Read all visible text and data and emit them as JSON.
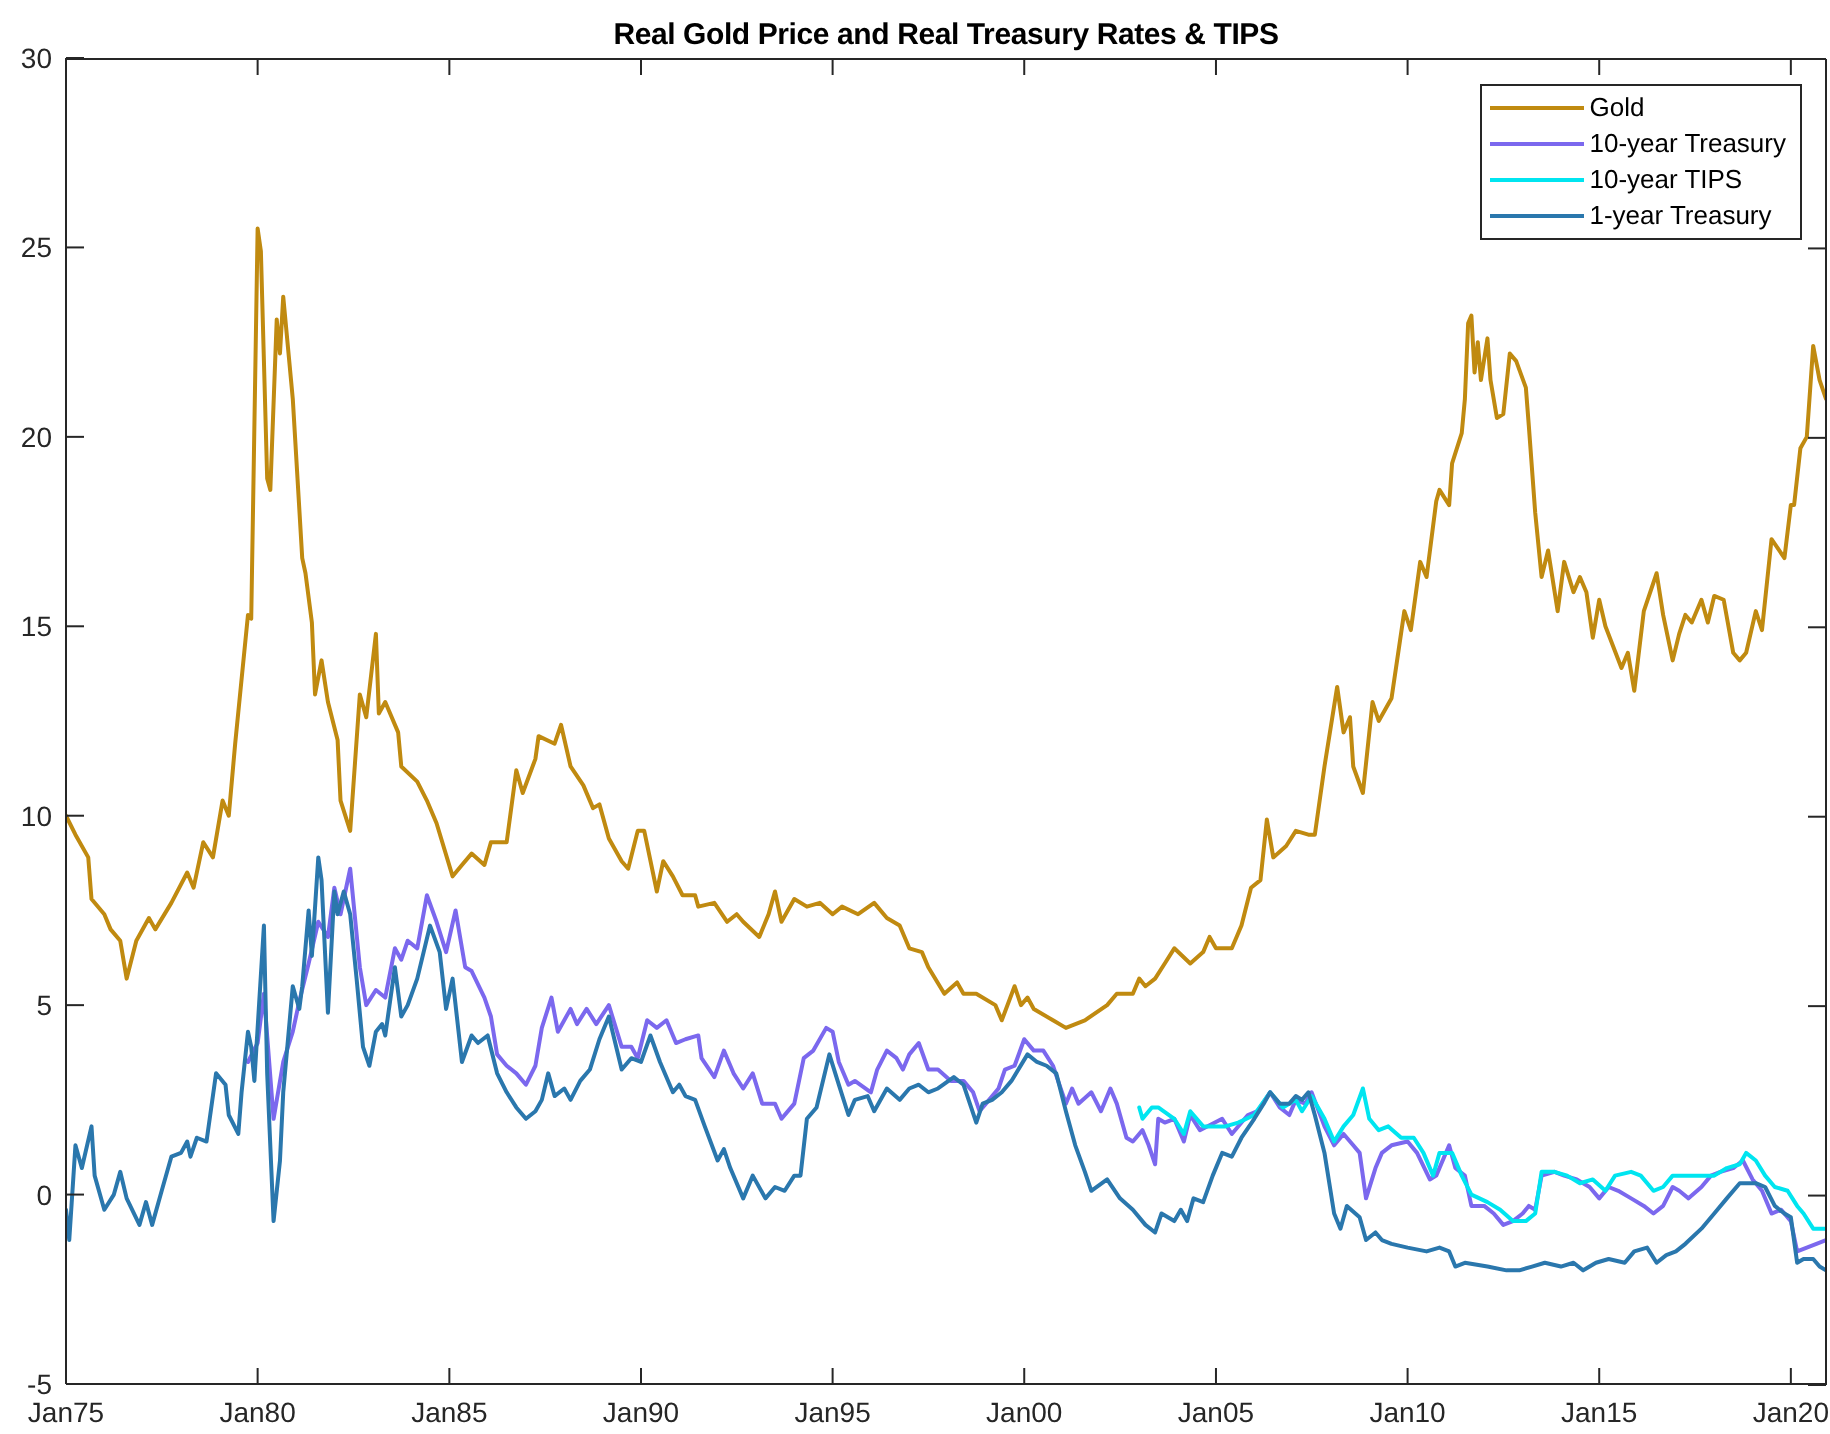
{
  "chart_data": {
    "type": "line",
    "title": "Real Gold Price and Real Treasury Rates & TIPS",
    "xlim": [
      "1975-01",
      "2020-12"
    ],
    "xticks": [
      {
        "value": "1975-01",
        "label": "Jan75"
      },
      {
        "value": "1980-01",
        "label": "Jan80"
      },
      {
        "value": "1985-01",
        "label": "Jan85"
      },
      {
        "value": "1990-01",
        "label": "Jan90"
      },
      {
        "value": "1995-01",
        "label": "Jan95"
      },
      {
        "value": "2000-01",
        "label": "Jan00"
      },
      {
        "value": "2005-01",
        "label": "Jan05"
      },
      {
        "value": "2010-01",
        "label": "Jan10"
      },
      {
        "value": "2015-01",
        "label": "Jan15"
      },
      {
        "value": "2020-01",
        "label": "Jan20"
      }
    ],
    "ylim": [
      -5,
      30
    ],
    "yticks": [
      -5,
      0,
      5,
      10,
      15,
      20,
      25,
      30
    ],
    "legend": "top right",
    "series": [
      {
        "name": "Gold",
        "color": "#c08a10",
        "x": [
          "1975-01",
          "1975-04",
          "1975-08",
          "1975-09",
          "1976-01",
          "1976-03",
          "1976-06",
          "1976-08",
          "1976-11",
          "1977-03",
          "1977-05",
          "1977-10",
          "1978-03",
          "1978-05",
          "1978-08",
          "1978-11",
          "1979-02",
          "1979-04",
          "1979-06",
          "1979-10",
          "1979-11",
          "1980-01",
          "1980-02",
          "1980-04",
          "1980-05",
          "1980-07",
          "1980-08",
          "1980-09",
          "1980-12",
          "1981-03",
          "1981-04",
          "1981-06",
          "1981-07",
          "1981-09",
          "1981-11",
          "1982-02",
          "1982-03",
          "1982-06",
          "1982-09",
          "1982-11",
          "1983-02",
          "1983-03",
          "1983-05",
          "1983-09",
          "1983-10",
          "1984-03",
          "1984-06",
          "1984-09",
          "1985-02",
          "1985-05",
          "1985-08",
          "1985-12",
          "1986-02",
          "1986-07",
          "1986-10",
          "1986-12",
          "1987-04",
          "1987-05",
          "1987-10",
          "1987-12",
          "1988-03",
          "1988-07",
          "1988-10",
          "1988-12",
          "1989-03",
          "1989-07",
          "1989-09",
          "1989-12",
          "1990-02",
          "1990-06",
          "1990-08",
          "1990-11",
          "1991-02",
          "1991-06",
          "1991-07",
          "1991-12",
          "1992-04",
          "1992-07",
          "1992-09",
          "1993-02",
          "1993-05",
          "1993-07",
          "1993-09",
          "1994-01",
          "1994-05",
          "1994-09",
          "1995-01",
          "1995-04",
          "1995-09",
          "1996-02",
          "1996-06",
          "1996-10",
          "1997-01",
          "1997-05",
          "1997-07",
          "1997-12",
          "1998-04",
          "1998-06",
          "1998-10",
          "1999-04",
          "1999-06",
          "1999-10",
          "1999-12",
          "2000-02",
          "2000-04",
          "2000-10",
          "2001-02",
          "2001-08",
          "2002-03",
          "2002-06",
          "2002-11",
          "2003-01",
          "2003-03",
          "2003-06",
          "2003-09",
          "2003-12",
          "2004-05",
          "2004-09",
          "2004-11",
          "2005-01",
          "2005-06",
          "2005-09",
          "2005-12",
          "2006-03",
          "2006-05",
          "2006-07",
          "2006-11",
          "2007-02",
          "2007-06",
          "2007-08",
          "2007-11",
          "2008-03",
          "2008-05",
          "2008-07",
          "2008-08",
          "2008-11",
          "2009-02",
          "2009-04",
          "2009-08",
          "2009-12",
          "2010-02",
          "2010-05",
          "2010-07",
          "2010-10",
          "2010-11",
          "2011-02",
          "2011-03",
          "2011-06",
          "2011-07",
          "2011-08",
          "2011-09",
          "2011-10",
          "2011-11",
          "2011-12",
          "2012-02",
          "2012-03",
          "2012-05",
          "2012-07",
          "2012-09",
          "2012-11",
          "2013-02",
          "2013-03",
          "2013-05",
          "2013-07",
          "2013-09",
          "2013-12",
          "2014-02",
          "2014-05",
          "2014-07",
          "2014-09",
          "2014-11",
          "2015-01",
          "2015-03",
          "2015-08",
          "2015-10",
          "2015-12",
          "2016-03",
          "2016-07",
          "2016-09",
          "2016-12",
          "2017-02",
          "2017-04",
          "2017-06",
          "2017-09",
          "2017-11",
          "2018-01",
          "2018-04",
          "2018-07",
          "2018-09",
          "2018-11",
          "2019-02",
          "2019-04",
          "2019-07",
          "2019-11",
          "2020-01",
          "2020-02",
          "2020-04",
          "2020-06",
          "2020-08",
          "2020-10",
          "2020-12"
        ],
        "values": [
          10.0,
          9.5,
          8.9,
          7.8,
          7.4,
          7.0,
          6.7,
          5.7,
          6.7,
          7.3,
          7.0,
          7.7,
          8.5,
          8.1,
          9.3,
          8.9,
          10.4,
          10.0,
          11.9,
          15.3,
          15.2,
          25.5,
          24.9,
          18.9,
          18.6,
          23.1,
          22.2,
          23.7,
          21.0,
          16.8,
          16.4,
          15.1,
          13.2,
          14.1,
          13.0,
          12.0,
          10.4,
          9.6,
          13.2,
          12.6,
          14.8,
          12.7,
          13.0,
          12.2,
          11.3,
          10.9,
          10.4,
          9.8,
          8.4,
          8.7,
          9.0,
          8.7,
          9.3,
          9.3,
          11.2,
          10.6,
          11.5,
          12.1,
          11.9,
          12.4,
          11.3,
          10.8,
          10.2,
          10.3,
          9.4,
          8.8,
          8.6,
          9.6,
          9.6,
          8.0,
          8.8,
          8.4,
          7.9,
          7.9,
          7.6,
          7.7,
          7.2,
          7.4,
          7.2,
          6.8,
          7.4,
          8.0,
          7.2,
          7.8,
          7.6,
          7.7,
          7.4,
          7.6,
          7.4,
          7.7,
          7.3,
          7.1,
          6.5,
          6.4,
          6.0,
          5.3,
          5.6,
          5.3,
          5.3,
          5.0,
          4.6,
          5.5,
          5.0,
          5.2,
          4.9,
          4.6,
          4.4,
          4.6,
          5.0,
          5.3,
          5.3,
          5.7,
          5.5,
          5.7,
          6.1,
          6.5,
          6.1,
          6.4,
          6.8,
          6.5,
          6.5,
          7.1,
          8.1,
          8.3,
          9.9,
          8.9,
          9.2,
          9.6,
          9.5,
          9.5,
          11.3,
          13.4,
          12.2,
          12.6,
          11.3,
          10.6,
          13.0,
          12.5,
          13.1,
          15.4,
          14.9,
          16.7,
          16.3,
          18.3,
          18.6,
          18.2,
          19.3,
          20.1,
          21.0,
          23.0,
          23.2,
          21.7,
          22.5,
          21.5,
          22.6,
          21.5,
          20.5,
          20.6,
          22.2,
          22.0,
          21.3,
          20.3,
          18.0,
          16.3,
          17.0,
          15.4,
          16.7,
          15.9,
          16.3,
          15.9,
          14.7,
          15.7,
          15.0,
          13.9,
          14.3,
          13.3,
          15.4,
          16.4,
          15.3,
          14.1,
          14.8,
          15.3,
          15.1,
          15.7,
          15.1,
          15.8,
          15.7,
          14.3,
          14.1,
          14.3,
          15.4,
          14.9,
          17.3,
          16.8,
          18.2,
          18.2,
          19.7,
          20.0,
          22.4,
          21.5,
          21.0
        ]
      },
      {
        "name": "10-year Treasury",
        "color": "#7b68ee",
        "x": [
          "1979-10",
          "1980-01",
          "1980-03",
          "1980-06",
          "1980-09",
          "1980-12",
          "1981-02",
          "1981-05",
          "1981-08",
          "1981-11",
          "1982-01",
          "1982-03",
          "1982-06",
          "1982-09",
          "1982-11",
          "1983-02",
          "1983-05",
          "1983-08",
          "1983-10",
          "1983-12",
          "1984-03",
          "1984-06",
          "1984-09",
          "1984-12",
          "1985-03",
          "1985-06",
          "1985-08",
          "1985-12",
          "1986-02",
          "1986-04",
          "1986-07",
          "1986-10",
          "1987-01",
          "1987-04",
          "1987-06",
          "1987-09",
          "1987-11",
          "1988-03",
          "1988-05",
          "1988-08",
          "1988-11",
          "1989-03",
          "1989-07",
          "1989-10",
          "1989-12",
          "1990-03",
          "1990-06",
          "1990-09",
          "1990-12",
          "1991-03",
          "1991-07",
          "1991-08",
          "1991-12",
          "1992-03",
          "1992-06",
          "1992-09",
          "1992-12",
          "1993-03",
          "1993-07",
          "1993-09",
          "1994-01",
          "1994-04",
          "1994-07",
          "1994-11",
          "1995-01",
          "1995-03",
          "1995-06",
          "1995-08",
          "1996-01",
          "1996-03",
          "1996-06",
          "1996-09",
          "1996-11",
          "1997-01",
          "1997-04",
          "1997-07",
          "1997-10",
          "1998-02",
          "1998-06",
          "1998-09",
          "1998-11",
          "1999-01",
          "1999-05",
          "1999-07",
          "1999-10",
          "2000-01",
          "2000-04",
          "2000-07",
          "2000-10",
          "2000-12",
          "2001-02",
          "2001-04",
          "2001-06",
          "2001-10",
          "2002-01",
          "2002-04",
          "2002-06",
          "2002-09",
          "2002-11",
          "2003-02",
          "2003-04",
          "2003-06",
          "2003-07",
          "2003-09",
          "2003-12",
          "2004-03",
          "2004-05",
          "2004-08",
          "2005-03",
          "2005-06",
          "2005-11",
          "2006-02",
          "2006-06",
          "2006-09",
          "2006-12",
          "2007-02",
          "2007-05",
          "2007-07",
          "2007-11",
          "2008-02",
          "2008-05",
          "2008-08",
          "2008-10",
          "2008-12",
          "2009-03",
          "2009-05",
          "2009-08",
          "2010-01",
          "2010-04",
          "2010-08",
          "2010-10",
          "2011-02",
          "2011-04",
          "2011-07",
          "2011-09",
          "2012-01",
          "2012-04",
          "2012-07",
          "2012-10",
          "2013-01",
          "2013-03",
          "2013-05",
          "2013-07",
          "2013-11",
          "2014-02",
          "2014-06",
          "2014-10",
          "2015-01",
          "2015-04",
          "2015-07",
          "2015-11",
          "2016-03",
          "2016-06",
          "2016-09",
          "2016-12",
          "2017-02",
          "2017-05",
          "2017-09",
          "2017-12",
          "2018-03",
          "2018-07",
          "2018-10",
          "2019-01",
          "2019-04",
          "2019-07",
          "2019-10",
          "2020-01",
          "2020-03",
          "2020-06",
          "2020-09",
          "2020-12"
        ],
        "values": [
          3.5,
          4.0,
          5.3,
          2.0,
          3.5,
          4.3,
          5.1,
          6.1,
          7.2,
          6.8,
          8.1,
          7.4,
          8.6,
          6.0,
          5.0,
          5.4,
          5.2,
          6.5,
          6.2,
          6.7,
          6.5,
          7.9,
          7.2,
          6.4,
          7.5,
          6.0,
          5.9,
          5.2,
          4.7,
          3.7,
          3.4,
          3.2,
          2.9,
          3.4,
          4.4,
          5.2,
          4.3,
          4.9,
          4.5,
          4.9,
          4.5,
          5.0,
          3.9,
          3.9,
          3.6,
          4.6,
          4.4,
          4.6,
          4.0,
          4.1,
          4.2,
          3.6,
          3.1,
          3.8,
          3.2,
          2.8,
          3.2,
          2.4,
          2.4,
          2.0,
          2.4,
          3.6,
          3.8,
          4.4,
          4.3,
          3.5,
          2.9,
          3.0,
          2.7,
          3.3,
          3.8,
          3.6,
          3.3,
          3.7,
          4.0,
          3.3,
          3.3,
          3.0,
          3.0,
          2.7,
          2.2,
          2.4,
          2.8,
          3.3,
          3.4,
          4.1,
          3.8,
          3.8,
          3.4,
          2.9,
          2.4,
          2.8,
          2.4,
          2.7,
          2.2,
          2.8,
          2.4,
          1.5,
          1.4,
          1.7,
          1.3,
          0.8,
          2.0,
          1.9,
          2.0,
          1.4,
          2.1,
          1.7,
          2.0,
          1.6,
          2.1,
          2.2,
          2.7,
          2.3,
          2.1,
          2.5,
          2.4,
          2.7,
          1.8,
          1.3,
          1.6,
          1.3,
          1.1,
          -0.1,
          0.7,
          1.1,
          1.3,
          1.4,
          1.1,
          0.4,
          0.5,
          1.3,
          0.7,
          0.5,
          -0.3,
          -0.3,
          -0.5,
          -0.8,
          -0.7,
          -0.5,
          -0.3,
          -0.4,
          0.5,
          0.6,
          0.5,
          0.4,
          0.2,
          -0.1,
          0.2,
          0.1,
          -0.1,
          -0.3,
          -0.5,
          -0.3,
          0.2,
          0.1,
          -0.1,
          0.2,
          0.5,
          0.6,
          0.7,
          0.9,
          0.4,
          0.1,
          -0.5,
          -0.4,
          -0.7,
          -1.5,
          -1.4,
          -1.3,
          -1.2
        ]
      },
      {
        "name": "10-year TIPS",
        "color": "#00e5f0",
        "x": [
          "2003-01",
          "2003-02",
          "2003-05",
          "2003-07",
          "2003-12",
          "2004-03",
          "2004-05",
          "2004-09",
          "2005-04",
          "2005-08",
          "2006-01",
          "2006-06",
          "2006-10",
          "2007-02",
          "2007-04",
          "2007-07",
          "2007-11",
          "2008-02",
          "2008-05",
          "2008-08",
          "2008-11",
          "2009-01",
          "2009-04",
          "2009-07",
          "2009-11",
          "2010-03",
          "2010-06",
          "2010-09",
          "2010-11",
          "2011-03",
          "2011-06",
          "2011-09",
          "2012-02",
          "2012-06",
          "2012-10",
          "2013-02",
          "2013-05",
          "2013-07",
          "2013-11",
          "2014-03",
          "2014-07",
          "2014-11",
          "2015-03",
          "2015-06",
          "2015-11",
          "2016-02",
          "2016-06",
          "2016-09",
          "2016-12",
          "2017-04",
          "2017-09",
          "2018-01",
          "2018-05",
          "2018-09",
          "2018-11",
          "2019-02",
          "2019-05",
          "2019-08",
          "2019-12",
          "2020-03",
          "2020-05",
          "2020-08",
          "2020-10",
          "2020-12"
        ],
        "values": [
          2.3,
          2.0,
          2.3,
          2.3,
          2.0,
          1.6,
          2.2,
          1.8,
          1.8,
          1.9,
          2.1,
          2.7,
          2.3,
          2.5,
          2.2,
          2.6,
          2.0,
          1.4,
          1.8,
          2.1,
          2.8,
          2.0,
          1.7,
          1.8,
          1.5,
          1.5,
          1.1,
          0.5,
          1.1,
          1.1,
          0.5,
          0.0,
          -0.2,
          -0.4,
          -0.7,
          -0.7,
          -0.5,
          0.6,
          0.6,
          0.5,
          0.3,
          0.4,
          0.1,
          0.5,
          0.6,
          0.5,
          0.1,
          0.2,
          0.5,
          0.5,
          0.5,
          0.5,
          0.7,
          0.8,
          1.1,
          0.9,
          0.5,
          0.2,
          0.1,
          -0.3,
          -0.5,
          -0.9,
          -0.9,
          -0.9
        ]
      },
      {
        "name": "1-year Treasury",
        "color": "#2a77ad",
        "x": [
          "1975-01",
          "1975-02",
          "1975-04",
          "1975-06",
          "1975-09",
          "1975-10",
          "1976-01",
          "1976-04",
          "1976-06",
          "1976-08",
          "1976-12",
          "1977-02",
          "1977-04",
          "1977-07",
          "1977-10",
          "1978-01",
          "1978-03",
          "1978-04",
          "1978-06",
          "1978-09",
          "1978-12",
          "1979-03",
          "1979-04",
          "1979-07",
          "1979-08",
          "1979-10",
          "1979-11",
          "1979-12",
          "1980-03",
          "1980-04",
          "1980-06",
          "1980-08",
          "1980-09",
          "1980-12",
          "1981-02",
          "1981-03",
          "1981-05",
          "1981-06",
          "1981-08",
          "1981-09",
          "1981-11",
          "1982-01",
          "1982-02",
          "1982-04",
          "1982-06",
          "1982-08",
          "1982-10",
          "1982-12",
          "1983-02",
          "1983-04",
          "1983-05",
          "1983-08",
          "1983-10",
          "1983-12",
          "1984-03",
          "1984-07",
          "1984-10",
          "1984-12",
          "1985-02",
          "1985-05",
          "1985-08",
          "1985-10",
          "1986-01",
          "1986-04",
          "1986-07",
          "1986-10",
          "1987-01",
          "1987-04",
          "1987-06",
          "1987-08",
          "1987-10",
          "1988-01",
          "1988-03",
          "1988-06",
          "1988-09",
          "1988-12",
          "1989-03",
          "1989-07",
          "1989-10",
          "1990-01",
          "1990-04",
          "1990-07",
          "1990-11",
          "1991-01",
          "1991-03",
          "1991-06",
          "1991-09",
          "1992-01",
          "1992-03",
          "1992-05",
          "1992-09",
          "1992-12",
          "1993-04",
          "1993-07",
          "1993-10",
          "1994-01",
          "1994-03",
          "1994-05",
          "1994-08",
          "1994-12",
          "1995-03",
          "1995-06",
          "1995-08",
          "1995-12",
          "1996-02",
          "1996-06",
          "1996-10",
          "1997-01",
          "1997-04",
          "1997-07",
          "1997-10",
          "1998-03",
          "1998-06",
          "1998-10",
          "1998-12",
          "1999-03",
          "1999-06",
          "1999-09",
          "2000-02",
          "2000-05",
          "2000-08",
          "2000-11",
          "2001-02",
          "2001-05",
          "2001-08",
          "2001-10",
          "2002-03",
          "2002-07",
          "2002-11",
          "2003-03",
          "2003-06",
          "2003-08",
          "2003-12",
          "2004-02",
          "2004-04",
          "2004-06",
          "2004-09",
          "2004-12",
          "2005-03",
          "2005-06",
          "2005-09",
          "2006-01",
          "2006-04",
          "2006-06",
          "2006-09",
          "2006-12",
          "2007-02",
          "2007-04",
          "2007-06",
          "2007-08",
          "2007-11",
          "2008-02",
          "2008-04",
          "2008-06",
          "2008-10",
          "2008-12",
          "2009-03",
          "2009-05",
          "2009-08",
          "2010-01",
          "2010-07",
          "2010-11",
          "2011-02",
          "2011-04",
          "2011-07",
          "2012-02",
          "2012-08",
          "2012-12",
          "2013-04",
          "2013-08",
          "2014-01",
          "2014-05",
          "2014-08",
          "2014-12",
          "2015-04",
          "2015-09",
          "2015-12",
          "2016-04",
          "2016-07",
          "2016-10",
          "2017-01",
          "2017-04",
          "2017-09",
          "2018-01",
          "2018-05",
          "2018-09",
          "2019-02",
          "2019-05",
          "2019-08",
          "2019-11",
          "2020-01",
          "2020-03",
          "2020-05",
          "2020-08",
          "2020-10",
          "2020-12"
        ],
        "values": [
          -0.4,
          -1.2,
          1.3,
          0.7,
          1.8,
          0.5,
          -0.4,
          0.0,
          0.6,
          -0.1,
          -0.8,
          -0.2,
          -0.8,
          0.1,
          1.0,
          1.1,
          1.4,
          1.0,
          1.5,
          1.4,
          3.2,
          2.9,
          2.1,
          1.6,
          2.7,
          4.3,
          3.9,
          3.0,
          7.1,
          3.2,
          -0.7,
          0.9,
          2.7,
          5.5,
          4.9,
          5.5,
          7.5,
          6.3,
          8.9,
          8.3,
          4.8,
          8.0,
          7.4,
          8.0,
          7.4,
          5.7,
          3.9,
          3.4,
          4.3,
          4.5,
          4.2,
          6.0,
          4.7,
          5.0,
          5.7,
          7.1,
          6.4,
          4.9,
          5.7,
          3.5,
          4.2,
          4.0,
          4.2,
          3.2,
          2.7,
          2.3,
          2.0,
          2.2,
          2.5,
          3.2,
          2.6,
          2.8,
          2.5,
          3.0,
          3.3,
          4.1,
          4.7,
          3.3,
          3.6,
          3.5,
          4.2,
          3.5,
          2.7,
          2.9,
          2.6,
          2.5,
          1.8,
          0.9,
          1.2,
          0.7,
          -0.1,
          0.5,
          -0.1,
          0.2,
          0.1,
          0.5,
          0.5,
          2.0,
          2.3,
          3.7,
          2.9,
          2.1,
          2.5,
          2.6,
          2.2,
          2.8,
          2.5,
          2.8,
          2.9,
          2.7,
          2.8,
          3.1,
          2.9,
          1.9,
          2.4,
          2.5,
          2.7,
          3.0,
          3.7,
          3.5,
          3.4,
          3.2,
          2.2,
          1.3,
          0.6,
          0.1,
          0.4,
          -0.1,
          -0.4,
          -0.8,
          -1.0,
          -0.5,
          -0.7,
          -0.4,
          -0.7,
          -0.1,
          -0.2,
          0.5,
          1.1,
          1.0,
          1.5,
          2.0,
          2.4,
          2.7,
          2.4,
          2.4,
          2.6,
          2.5,
          2.7,
          2.1,
          1.1,
          -0.5,
          -0.9,
          -0.3,
          -0.6,
          -1.2,
          -1.0,
          -1.2,
          -1.3,
          -1.4,
          -1.5,
          -1.4,
          -1.5,
          -1.9,
          -1.8,
          -1.9,
          -2.0,
          -2.0,
          -1.9,
          -1.8,
          -1.9,
          -1.8,
          -2.0,
          -1.8,
          -1.7,
          -1.8,
          -1.5,
          -1.4,
          -1.8,
          -1.6,
          -1.5,
          -1.3,
          -0.9,
          -0.5,
          -0.1,
          0.3,
          0.3,
          0.2,
          -0.3,
          -0.5,
          -0.6,
          -1.8,
          -1.7,
          -1.7,
          -1.9,
          -2.0
        ]
      }
    ]
  }
}
